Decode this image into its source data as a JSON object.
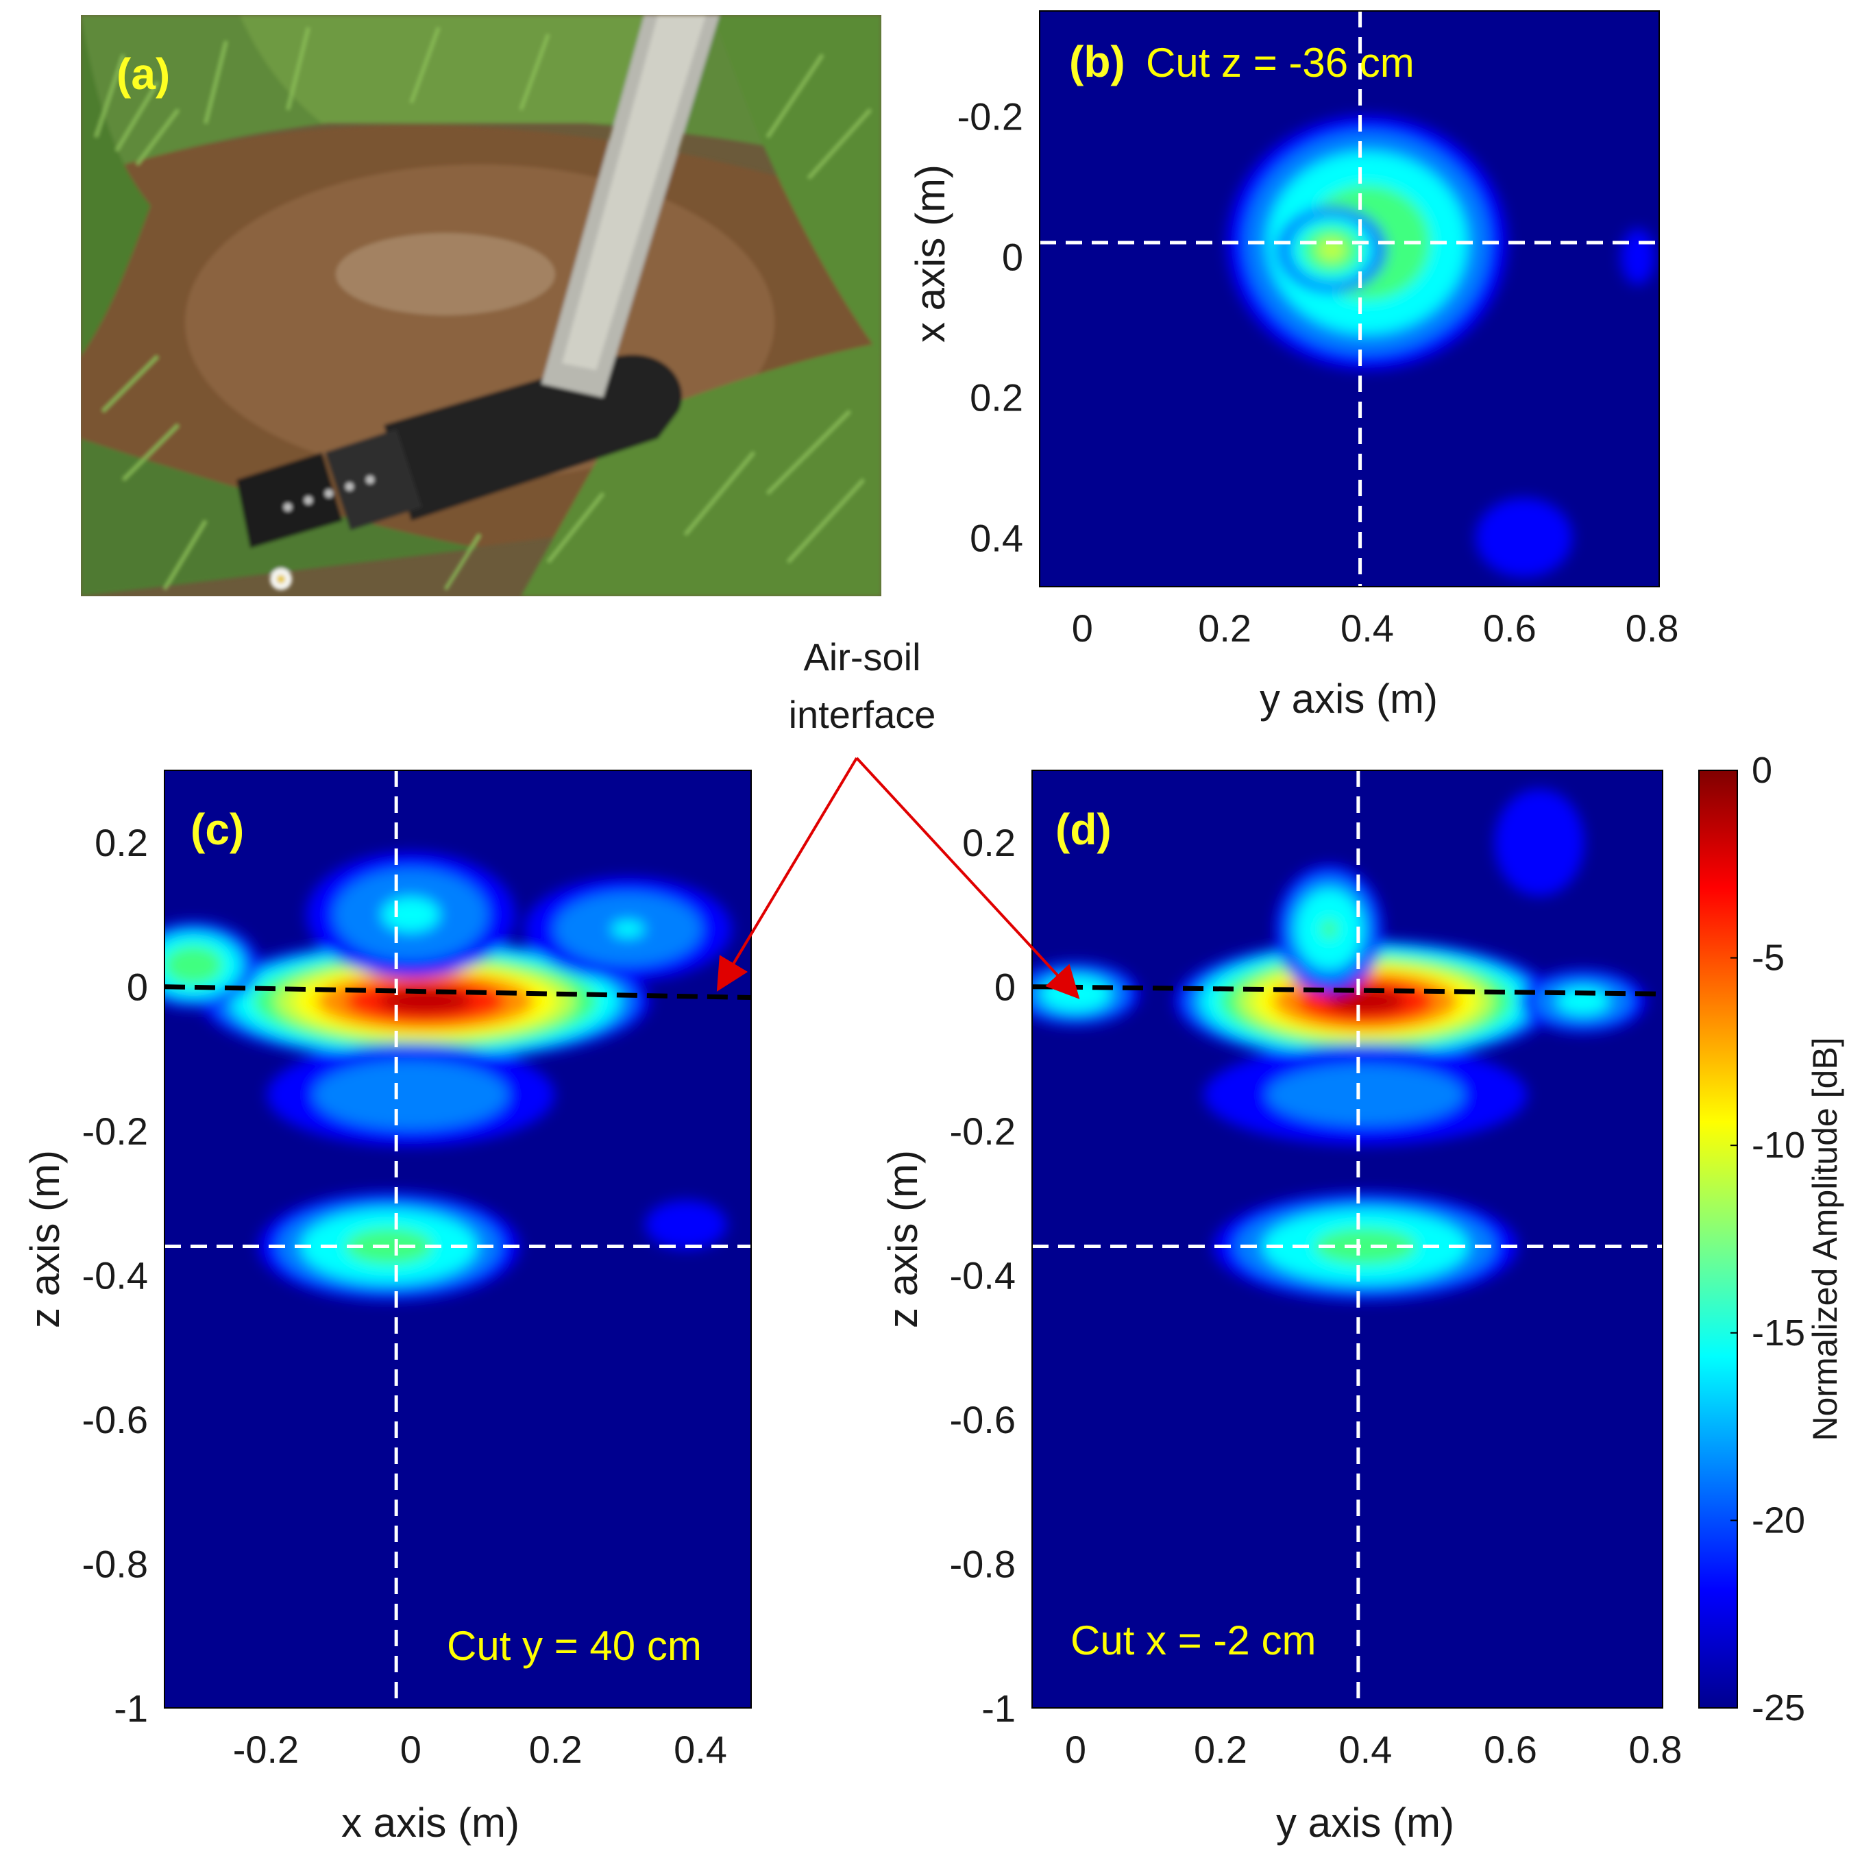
{
  "colors": {
    "background_dark_blue": "#00008f",
    "crosshair": "#ffffff",
    "interface_line": "#000000",
    "arrow": "#e00000",
    "label_yellow": "#ffff00"
  },
  "chart_data": [
    {
      "id": "a",
      "type": "photo",
      "panel_label": "(a)",
      "content": "photo of mortar projectile in soil pit with ruler"
    },
    {
      "id": "b",
      "type": "heatmap",
      "panel_label": "(b)",
      "cut_label": "Cut z = -36 cm",
      "xlabel": "y axis (m)",
      "ylabel": "x axis (m)",
      "x_ticks": [
        "0",
        "0.2",
        "0.4",
        "0.6",
        "0.8"
      ],
      "y_ticks": [
        "-0.2",
        "0",
        "0.2",
        "0.4"
      ],
      "xlim": [
        -0.06,
        0.81
      ],
      "ylim": [
        -0.35,
        0.47
      ],
      "y_reversed": true,
      "crosshair": {
        "x": 0.39,
        "y": -0.02
      },
      "blobs": [
        {
          "x": 0.4,
          "y": -0.02,
          "sx": 0.13,
          "sy": 0.12,
          "level": 0.55
        },
        {
          "x": 0.35,
          "y": -0.01,
          "sx": 0.05,
          "sy": 0.04,
          "level": 0.62
        },
        {
          "x": 0.62,
          "y": 0.4,
          "sx": 0.06,
          "sy": 0.05,
          "level": 0.12
        },
        {
          "x": 0.78,
          "y": 0.0,
          "sx": 0.03,
          "sy": 0.05,
          "level": 0.08
        }
      ]
    },
    {
      "id": "c",
      "type": "heatmap",
      "panel_label": "(c)",
      "cut_label": "Cut y = 40 cm",
      "xlabel": "x axis (m)",
      "ylabel": "z axis (m)",
      "x_ticks": [
        "-0.2",
        "0",
        "0.2",
        "0.4"
      ],
      "y_ticks": [
        "0.2",
        "0",
        "-0.2",
        "-0.4",
        "-0.6",
        "-0.8",
        "-1"
      ],
      "xlim": [
        -0.34,
        0.47
      ],
      "ylim": [
        -1.0,
        0.3
      ],
      "y_reversed": false,
      "crosshair": {
        "x": -0.02,
        "y": -0.36
      },
      "interface_line": [
        [
          -0.34,
          0.0
        ],
        [
          0.47,
          -0.015
        ]
      ],
      "blobs": [
        {
          "x": 0.02,
          "y": -0.02,
          "sx": 0.2,
          "sy": 0.055,
          "level": 1.0
        },
        {
          "x": -0.3,
          "y": 0.03,
          "sx": 0.06,
          "sy": 0.04,
          "level": 0.55
        },
        {
          "x": 0.0,
          "y": 0.1,
          "sx": 0.1,
          "sy": 0.06,
          "level": 0.32
        },
        {
          "x": 0.3,
          "y": 0.08,
          "sx": 0.1,
          "sy": 0.05,
          "level": 0.3
        },
        {
          "x": 0.0,
          "y": -0.15,
          "sx": 0.14,
          "sy": 0.05,
          "level": 0.28
        },
        {
          "x": -0.03,
          "y": -0.36,
          "sx": 0.12,
          "sy": 0.05,
          "level": 0.5
        },
        {
          "x": 0.38,
          "y": -0.33,
          "sx": 0.05,
          "sy": 0.03,
          "level": 0.12
        }
      ]
    },
    {
      "id": "d",
      "type": "heatmap",
      "panel_label": "(d)",
      "cut_label": "Cut x = -2 cm",
      "xlabel": "y axis (m)",
      "ylabel": "z axis (m)",
      "x_ticks": [
        "0",
        "0.2",
        "0.4",
        "0.6",
        "0.8"
      ],
      "y_ticks": [
        "0.2",
        "0",
        "-0.2",
        "-0.4",
        "-0.6",
        "-0.8",
        "-1"
      ],
      "xlim": [
        -0.06,
        0.81
      ],
      "ylim": [
        -1.0,
        0.3
      ],
      "y_reversed": false,
      "crosshair": {
        "x": 0.39,
        "y": -0.36
      },
      "interface_line": [
        [
          -0.06,
          0.0
        ],
        [
          0.81,
          -0.01
        ]
      ],
      "blobs": [
        {
          "x": 0.4,
          "y": -0.02,
          "sx": 0.17,
          "sy": 0.055,
          "level": 1.0
        },
        {
          "x": 0.35,
          "y": 0.08,
          "sx": 0.05,
          "sy": 0.06,
          "level": 0.45
        },
        {
          "x": 0.0,
          "y": -0.01,
          "sx": 0.06,
          "sy": 0.03,
          "level": 0.4
        },
        {
          "x": 0.7,
          "y": -0.02,
          "sx": 0.06,
          "sy": 0.03,
          "level": 0.35
        },
        {
          "x": 0.4,
          "y": -0.15,
          "sx": 0.16,
          "sy": 0.05,
          "level": 0.25
        },
        {
          "x": 0.4,
          "y": -0.36,
          "sx": 0.14,
          "sy": 0.05,
          "level": 0.5
        },
        {
          "x": 0.64,
          "y": 0.2,
          "sx": 0.05,
          "sy": 0.06,
          "level": 0.15
        }
      ]
    }
  ],
  "colorbar": {
    "label": "Normalized Amplitude [dB]",
    "ticks": [
      "0",
      "-5",
      "-10",
      "-15",
      "-20",
      "-25"
    ],
    "range": [
      -25,
      0
    ]
  },
  "annotation": {
    "line1": "Air-soil",
    "line2": "interface"
  }
}
